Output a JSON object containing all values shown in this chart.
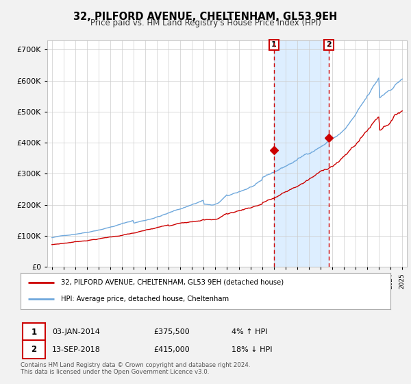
{
  "title": "32, PILFORD AVENUE, CHELTENHAM, GL53 9EH",
  "subtitle": "Price paid vs. HM Land Registry's House Price Index (HPI)",
  "ylim": [
    0,
    730000
  ],
  "yticks": [
    0,
    100000,
    200000,
    300000,
    400000,
    500000,
    600000,
    700000
  ],
  "sale1_date_num": 2014.02,
  "sale1_price": 375500,
  "sale2_date_num": 2018.71,
  "sale2_price": 415000,
  "hpi_color": "#6fa8dc",
  "price_color": "#cc0000",
  "vline_color": "#cc0000",
  "shade_color": "#ddeeff",
  "background_color": "#f2f2f2",
  "plot_bg_color": "#ffffff",
  "legend_label_price": "32, PILFORD AVENUE, CHELTENHAM, GL53 9EH (detached house)",
  "legend_label_hpi": "HPI: Average price, detached house, Cheltenham",
  "footer": "Contains HM Land Registry data © Crown copyright and database right 2024.\nThis data is licensed under the Open Government Licence v3.0.",
  "xlim_start": 1994.6,
  "xlim_end": 2025.4,
  "noise_seed_hpi": 42,
  "noise_seed_price": 7
}
